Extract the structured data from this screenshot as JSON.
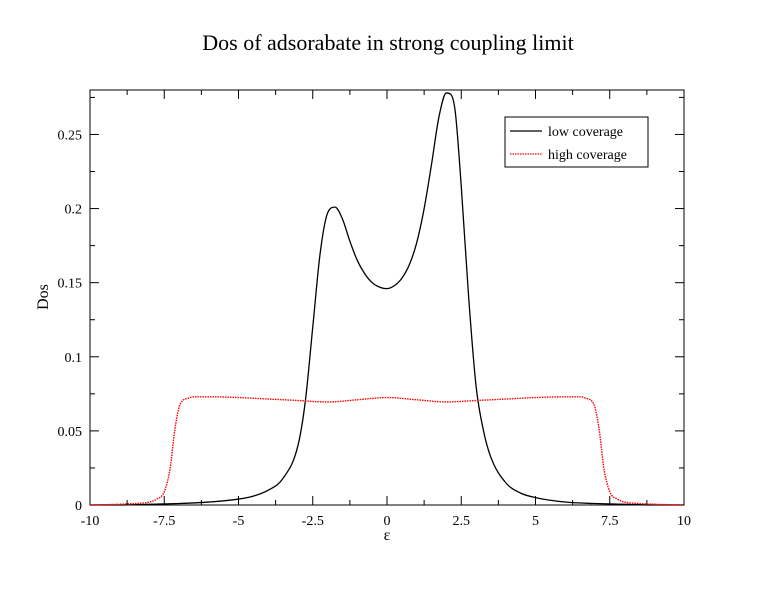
{
  "chart_data": {
    "type": "line",
    "title": "Dos of adsorabate in strong coupling limit",
    "xlabel": "ε",
    "ylabel": "Dos",
    "xlim": [
      -10,
      10
    ],
    "ylim": [
      0,
      0.28
    ],
    "x_ticks": [
      -10,
      -7.5,
      -5,
      -2.5,
      0,
      2.5,
      5,
      7.5,
      10
    ],
    "x_tick_labels": [
      "-10",
      "-7.5",
      "-5",
      "-2.5",
      "0",
      "2.5",
      "5",
      "7.5",
      "10"
    ],
    "y_ticks": [
      0,
      0.05,
      0.1,
      0.15,
      0.2,
      0.25
    ],
    "y_tick_labels": [
      "0",
      "0.05",
      "0.1",
      "0.15",
      "0.2",
      "0.25"
    ],
    "legend_position": "top-right",
    "grid": false,
    "series": [
      {
        "name": "low coverage",
        "color": "#000000",
        "style": "solid",
        "x": [
          -10,
          -9,
          -8,
          -7,
          -6,
          -5,
          -4.5,
          -4,
          -3.5,
          -3,
          -2.75,
          -2.5,
          -2.25,
          -2,
          -1.75,
          -1.5,
          -1.25,
          -1,
          -0.75,
          -0.5,
          -0.25,
          0,
          0.25,
          0.5,
          0.75,
          1,
          1.25,
          1.5,
          1.75,
          2,
          2.15,
          2.3,
          2.5,
          2.75,
          3,
          3.25,
          3.5,
          4,
          4.5,
          5,
          6,
          7,
          8,
          9,
          10
        ],
        "y": [
          0,
          0,
          0.0005,
          0.001,
          0.002,
          0.004,
          0.006,
          0.01,
          0.018,
          0.04,
          0.07,
          0.12,
          0.17,
          0.197,
          0.201,
          0.193,
          0.178,
          0.165,
          0.156,
          0.15,
          0.147,
          0.146,
          0.148,
          0.153,
          0.162,
          0.177,
          0.2,
          0.23,
          0.262,
          0.278,
          0.277,
          0.265,
          0.215,
          0.14,
          0.08,
          0.05,
          0.032,
          0.015,
          0.008,
          0.005,
          0.002,
          0.001,
          0.0005,
          0,
          0
        ]
      },
      {
        "name": "high coverage",
        "color": "#ff0000",
        "style": "dotted",
        "x": [
          -10,
          -9,
          -8.5,
          -8,
          -7.75,
          -7.5,
          -7.3,
          -7.15,
          -7,
          -6.9,
          -6.7,
          -6.5,
          -6,
          -5,
          -4,
          -3,
          -2,
          -1,
          0,
          1,
          2,
          3,
          4,
          5,
          6,
          6.5,
          6.7,
          6.9,
          7,
          7.15,
          7.3,
          7.5,
          7.75,
          8,
          8.5,
          9,
          10
        ],
        "y": [
          0,
          0.0005,
          0.001,
          0.002,
          0.004,
          0.009,
          0.025,
          0.05,
          0.066,
          0.07,
          0.072,
          0.073,
          0.073,
          0.0725,
          0.0715,
          0.0705,
          0.0695,
          0.071,
          0.0725,
          0.071,
          0.0695,
          0.0705,
          0.0715,
          0.0725,
          0.073,
          0.073,
          0.072,
          0.07,
          0.066,
          0.05,
          0.025,
          0.009,
          0.004,
          0.002,
          0.001,
          0.0005,
          0
        ]
      }
    ]
  }
}
